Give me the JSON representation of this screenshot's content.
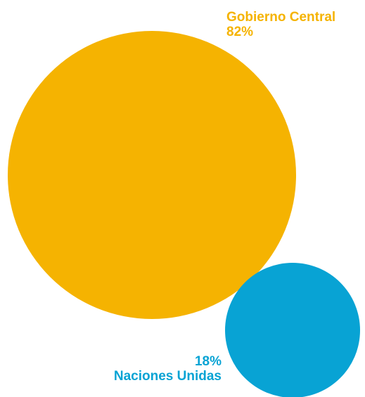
{
  "chart_data": {
    "type": "bubble",
    "title": "",
    "series": [
      {
        "name": "Gobierno Central",
        "value": 82,
        "value_label": "82%",
        "color": "#F5B301"
      },
      {
        "name": "Naciones Unidas",
        "value": 18,
        "value_label": "18%",
        "color": "#08A3D4"
      }
    ],
    "legend": "none",
    "grid": false
  }
}
